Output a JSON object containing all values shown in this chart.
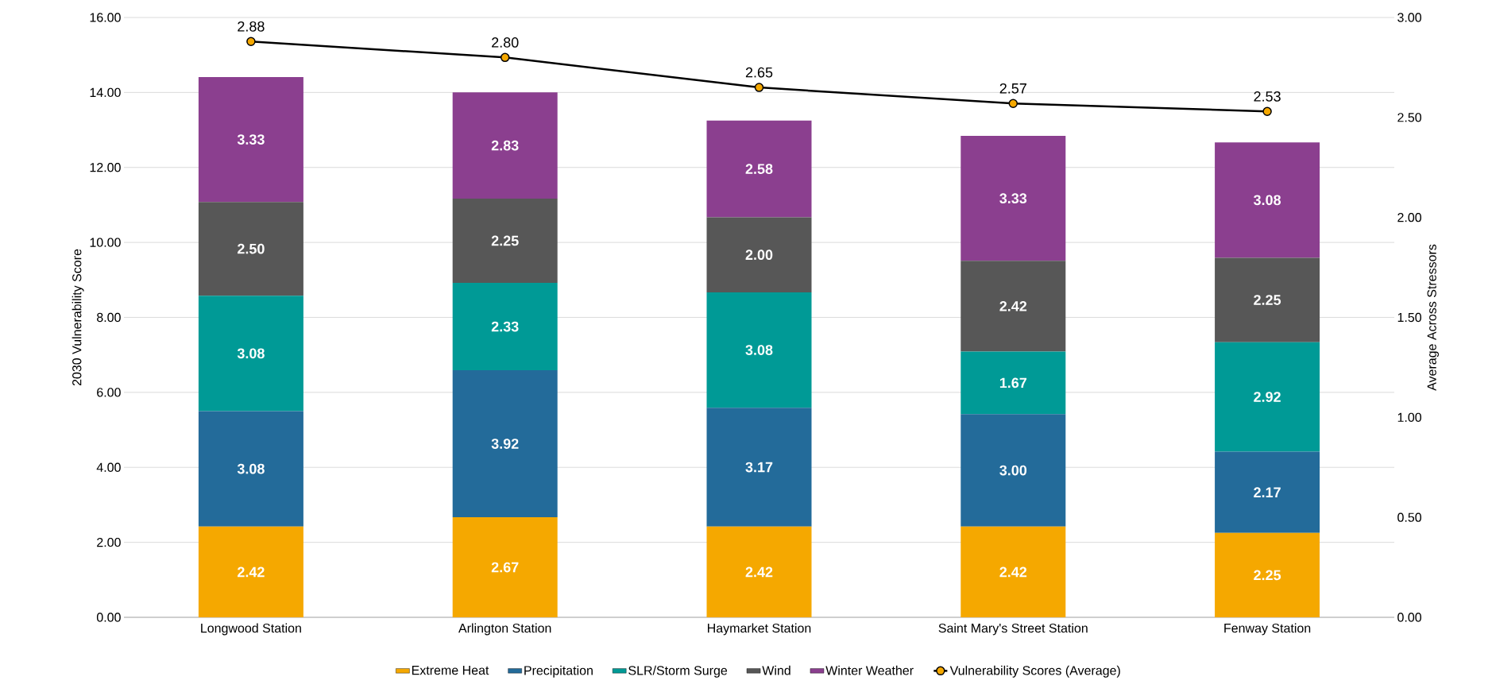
{
  "chart_data": {
    "type": "bar",
    "stacked": true,
    "categories": [
      "Longwood Station",
      "Arlington Station",
      "Haymarket Station",
      "Saint Mary's Street Station",
      "Fenway Station"
    ],
    "ylabel": "2030 Vulnerability Score",
    "y2label": "Average Across Stressors",
    "ylim": [
      0,
      16
    ],
    "yticks": [
      {
        "value": 0,
        "label": "0.00"
      },
      {
        "value": 2,
        "label": "2.00"
      },
      {
        "value": 4,
        "label": "4.00"
      },
      {
        "value": 6,
        "label": "6.00"
      },
      {
        "value": 8,
        "label": "8.00"
      },
      {
        "value": 10,
        "label": "10.00"
      },
      {
        "value": 12,
        "label": "12.00"
      },
      {
        "value": 14,
        "label": "14.00"
      },
      {
        "value": 16,
        "label": "16.00"
      }
    ],
    "y2lim": [
      0,
      3
    ],
    "y2ticks": [
      {
        "value": 0,
        "label": "0.00"
      },
      {
        "value": 0.5,
        "label": "0.50"
      },
      {
        "value": 1,
        "label": "1.00"
      },
      {
        "value": 1.5,
        "label": "1.50"
      },
      {
        "value": 2,
        "label": "2.00"
      },
      {
        "value": 2.5,
        "label": "2.50"
      },
      {
        "value": 3,
        "label": "3.00"
      }
    ],
    "grid": "y",
    "legend": "bottom",
    "marker": "circle",
    "line_style": "solid",
    "series": [
      {
        "name": "Extreme Heat",
        "color": "#f5a800",
        "values": [
          2.42,
          2.67,
          2.42,
          2.42,
          2.25
        ],
        "value_labels": [
          "2.42",
          "2.67",
          "2.42",
          "2.42",
          "2.25"
        ]
      },
      {
        "name": "Precipitation",
        "color": "#236b9a",
        "values": [
          3.08,
          3.92,
          3.17,
          3.0,
          2.17
        ],
        "value_labels": [
          "3.08",
          "3.92",
          "3.17",
          "3.00",
          "2.17"
        ]
      },
      {
        "name": "SLR/Storm Surge",
        "color": "#009a96",
        "values": [
          3.08,
          2.33,
          3.08,
          1.67,
          2.92
        ],
        "value_labels": [
          "3.08",
          "2.33",
          "3.08",
          "1.67",
          "2.92"
        ]
      },
      {
        "name": "Wind",
        "color": "#575757",
        "values": [
          2.5,
          2.25,
          2.0,
          2.42,
          2.25
        ],
        "value_labels": [
          "2.50",
          "2.25",
          "2.00",
          "2.42",
          "2.25"
        ]
      },
      {
        "name": "Winter Weather",
        "color": "#8b3f8f",
        "values": [
          3.33,
          2.83,
          2.58,
          3.33,
          3.08
        ],
        "value_labels": [
          "3.33",
          "2.83",
          "2.58",
          "3.33",
          "3.08"
        ]
      },
      {
        "name": "Vulnerability Scores (Average)",
        "type": "line",
        "axis": "y2",
        "color": "#000000",
        "values": [
          2.88,
          2.8,
          2.65,
          2.57,
          2.53
        ],
        "value_labels": [
          "2.88",
          "2.80",
          "2.65",
          "2.57",
          "2.53"
        ]
      }
    ]
  }
}
